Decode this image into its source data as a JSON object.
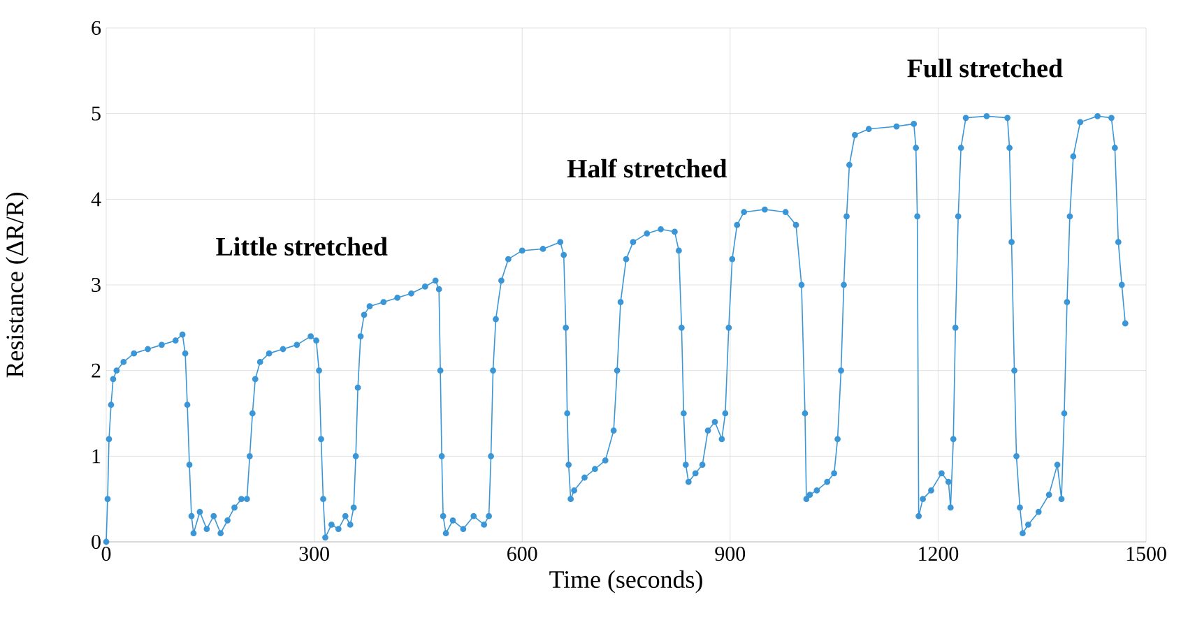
{
  "chart_data": {
    "type": "line",
    "xlabel": "Time (seconds)",
    "ylabel": "Resistance (ΔR/R)",
    "xlim": [
      0,
      1500
    ],
    "xticks": [
      0,
      300,
      600,
      900,
      1200,
      1500
    ],
    "ylim": [
      0,
      6
    ],
    "yticks": [
      0,
      1,
      2,
      3,
      4,
      5,
      6
    ],
    "grid": true,
    "marker": "circle",
    "annotations": [
      "Little stretched",
      "Half stretched",
      "Full stretched"
    ],
    "series": [
      {
        "color": "#3a96d6",
        "x": [
          0,
          2,
          4,
          7,
          10,
          15,
          25,
          40,
          60,
          80,
          100,
          110,
          114,
          117,
          120,
          123,
          126,
          135,
          145,
          155,
          165,
          175,
          185,
          195,
          203,
          207,
          211,
          215,
          222,
          235,
          255,
          275,
          295,
          303,
          307,
          310,
          313,
          316,
          325,
          335,
          345,
          352,
          357,
          360,
          363,
          367,
          372,
          380,
          400,
          420,
          440,
          460,
          475,
          480,
          482,
          484,
          486,
          490,
          500,
          515,
          530,
          545,
          552,
          555,
          558,
          562,
          570,
          580,
          600,
          630,
          655,
          660,
          663,
          665,
          667,
          670,
          675,
          690,
          705,
          720,
          732,
          737,
          742,
          750,
          760,
          780,
          800,
          820,
          826,
          830,
          833,
          836,
          840,
          850,
          860,
          868,
          878,
          888,
          893,
          898,
          903,
          910,
          920,
          950,
          980,
          995,
          1003,
          1008,
          1010,
          1015,
          1025,
          1040,
          1050,
          1055,
          1060,
          1064,
          1068,
          1072,
          1080,
          1100,
          1140,
          1165,
          1168,
          1170,
          1172,
          1178,
          1190,
          1205,
          1215,
          1218,
          1222,
          1225,
          1229,
          1233,
          1240,
          1270,
          1300,
          1303,
          1306,
          1310,
          1313,
          1318,
          1322,
          1330,
          1345,
          1360,
          1372,
          1378,
          1382,
          1386,
          1390,
          1395,
          1405,
          1430,
          1450,
          1455,
          1460,
          1465,
          1470
        ],
        "values": [
          0,
          0.5,
          1.2,
          1.6,
          1.9,
          2.0,
          2.1,
          2.2,
          2.25,
          2.3,
          2.35,
          2.42,
          2.2,
          1.6,
          0.9,
          0.3,
          0.1,
          0.35,
          0.15,
          0.3,
          0.1,
          0.25,
          0.4,
          0.5,
          0.5,
          1.0,
          1.5,
          1.9,
          2.1,
          2.2,
          2.25,
          2.3,
          2.4,
          2.35,
          2.0,
          1.2,
          0.5,
          0.05,
          0.2,
          0.15,
          0.3,
          0.2,
          0.4,
          1.0,
          1.8,
          2.4,
          2.65,
          2.75,
          2.8,
          2.85,
          2.9,
          2.98,
          3.05,
          2.95,
          2.0,
          1.0,
          0.3,
          0.1,
          0.25,
          0.15,
          0.3,
          0.2,
          0.3,
          1.0,
          2.0,
          2.6,
          3.05,
          3.3,
          3.4,
          3.42,
          3.5,
          3.35,
          2.5,
          1.5,
          0.9,
          0.5,
          0.6,
          0.75,
          0.85,
          0.95,
          1.3,
          2.0,
          2.8,
          3.3,
          3.5,
          3.6,
          3.65,
          3.62,
          3.4,
          2.5,
          1.5,
          0.9,
          0.7,
          0.8,
          0.9,
          1.3,
          1.4,
          1.2,
          1.5,
          2.5,
          3.3,
          3.7,
          3.85,
          3.88,
          3.85,
          3.7,
          3.0,
          1.5,
          0.5,
          0.55,
          0.6,
          0.7,
          0.8,
          1.2,
          2.0,
          3.0,
          3.8,
          4.4,
          4.75,
          4.82,
          4.85,
          4.88,
          4.6,
          3.8,
          0.3,
          0.5,
          0.6,
          0.8,
          0.7,
          0.4,
          1.2,
          2.5,
          3.8,
          4.6,
          4.95,
          4.97,
          4.95,
          4.6,
          3.5,
          2.0,
          1.0,
          0.4,
          0.1,
          0.2,
          0.35,
          0.55,
          0.9,
          0.5,
          1.5,
          2.8,
          3.8,
          4.5,
          4.9,
          4.97,
          4.95,
          4.6,
          3.5,
          3.0,
          2.55
        ]
      }
    ]
  }
}
